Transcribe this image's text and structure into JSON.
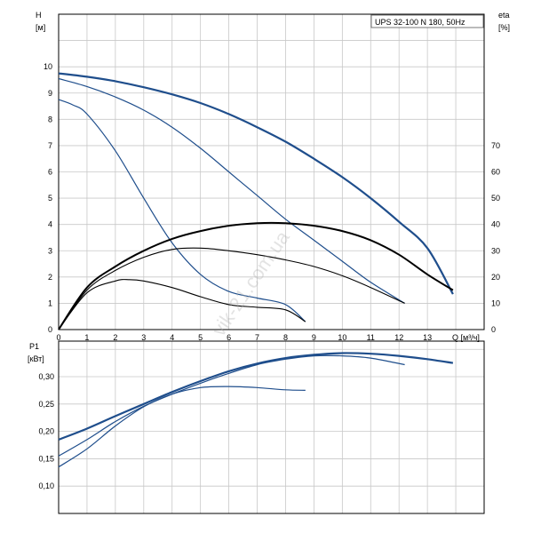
{
  "chart_data": [
    {
      "type": "line",
      "title": "UPS 32-100 N 180, 50Hz",
      "xlabel": "Q [м³/ч]",
      "ylabel": "H [м]",
      "y2label": "eta [%]",
      "xlim": [
        0,
        15
      ],
      "ylim": [
        0,
        12
      ],
      "y2lim": [
        0,
        120
      ],
      "x_ticks": [
        0,
        1,
        2,
        3,
        4,
        5,
        6,
        7,
        8,
        9,
        10,
        11,
        12,
        13
      ],
      "y_ticks": [
        0,
        1,
        2,
        3,
        4,
        5,
        6,
        7,
        8,
        9,
        10
      ],
      "y2_ticks": [
        0,
        10,
        20,
        30,
        40,
        50,
        60,
        70
      ],
      "grid": true,
      "labels": {
        "h_top": "H",
        "h_unit": "[м]",
        "eta_top": "eta",
        "eta_unit": "[%]",
        "q_label": "Q [м³/ч]"
      },
      "series": [
        {
          "axis": "H",
          "color": "#1f4e8c",
          "width": 2.2,
          "x": [
            0,
            1,
            2,
            3,
            4,
            5,
            6,
            7,
            8,
            9,
            10,
            11,
            12,
            13,
            13.9
          ],
          "y": [
            9.75,
            9.62,
            9.45,
            9.22,
            8.95,
            8.62,
            8.2,
            7.7,
            7.15,
            6.5,
            5.8,
            5.0,
            4.1,
            3.1,
            1.35
          ]
        },
        {
          "axis": "H",
          "color": "#1f4e8c",
          "width": 1.2,
          "x": [
            0,
            1,
            2,
            3,
            4,
            5,
            6,
            7,
            8,
            9,
            10,
            11,
            12.2
          ],
          "y": [
            9.55,
            9.25,
            8.85,
            8.35,
            7.7,
            6.9,
            6.0,
            5.1,
            4.2,
            3.4,
            2.6,
            1.8,
            1.0
          ]
        },
        {
          "axis": "H",
          "color": "#1f4e8c",
          "width": 1.2,
          "x": [
            0,
            0.5,
            1,
            2,
            3,
            4,
            5,
            6,
            7,
            8,
            8.7
          ],
          "y": [
            8.75,
            8.55,
            8.2,
            6.8,
            5.0,
            3.3,
            2.1,
            1.45,
            1.2,
            0.95,
            0.3
          ]
        },
        {
          "axis": "eta",
          "color": "#000000",
          "width": 2.0,
          "x": [
            0,
            1,
            2,
            3,
            4,
            5,
            6,
            7,
            8,
            9,
            10,
            11,
            12,
            13,
            13.9
          ],
          "y": [
            0,
            16,
            24,
            30,
            34.5,
            37.5,
            39.5,
            40.5,
            40.5,
            39.5,
            37.5,
            34,
            28.5,
            21,
            15
          ]
        },
        {
          "axis": "eta",
          "color": "#000000",
          "width": 1.1,
          "x": [
            0,
            1,
            2,
            3,
            4,
            5,
            6,
            7,
            8,
            9,
            10,
            11,
            12.2
          ],
          "y": [
            0,
            15,
            22.5,
            27.5,
            30.5,
            31,
            30,
            28.5,
            26.5,
            24,
            20.5,
            16,
            10
          ]
        },
        {
          "axis": "eta",
          "color": "#000000",
          "width": 1.1,
          "x": [
            0,
            1,
            2,
            2.5,
            3,
            4,
            5,
            6,
            7,
            8,
            8.7
          ],
          "y": [
            0,
            14,
            18.5,
            19,
            18.5,
            16,
            12.5,
            9.5,
            8.5,
            7.5,
            3
          ]
        }
      ]
    },
    {
      "type": "line",
      "ylabel": "P1 [кВт]",
      "xlim": [
        0,
        15
      ],
      "ylim": [
        0.05,
        0.365
      ],
      "y_ticks": [
        0.1,
        0.15,
        0.2,
        0.25,
        0.3
      ],
      "y_tick_labels": [
        "0,10",
        "0,15",
        "0,20",
        "0,25",
        "0,30"
      ],
      "grid": true,
      "labels": {
        "p_top": "P1",
        "p_unit": "[кВт]"
      },
      "series": [
        {
          "color": "#1f4e8c",
          "width": 2.2,
          "x": [
            0,
            1,
            2,
            3,
            4,
            5,
            6,
            7,
            8,
            9,
            10,
            11,
            12,
            13,
            13.9
          ],
          "y": [
            0.185,
            0.205,
            0.228,
            0.25,
            0.272,
            0.292,
            0.31,
            0.324,
            0.334,
            0.34,
            0.343,
            0.342,
            0.338,
            0.332,
            0.325
          ]
        },
        {
          "color": "#1f4e8c",
          "width": 1.2,
          "x": [
            0,
            1,
            2,
            3,
            4,
            5,
            6,
            7,
            8,
            9,
            10,
            11,
            12.2
          ],
          "y": [
            0.155,
            0.185,
            0.218,
            0.246,
            0.268,
            0.288,
            0.306,
            0.322,
            0.332,
            0.338,
            0.338,
            0.334,
            0.322
          ]
        },
        {
          "color": "#1f4e8c",
          "width": 1.2,
          "x": [
            0,
            1,
            2,
            3,
            4,
            5,
            6,
            7,
            8,
            8.7
          ],
          "y": [
            0.135,
            0.168,
            0.21,
            0.245,
            0.268,
            0.28,
            0.282,
            0.28,
            0.276,
            0.275
          ]
        }
      ]
    }
  ],
  "watermark": "vik-21.com.ua"
}
